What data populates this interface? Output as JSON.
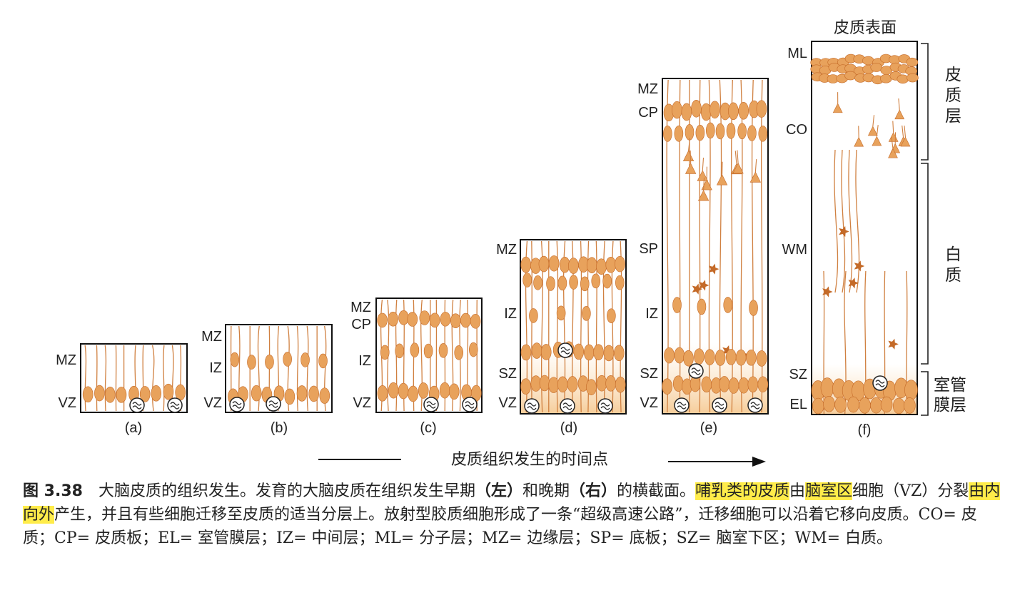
{
  "panels": [
    {
      "id": "a",
      "label": "(a)",
      "layers": [
        "MZ",
        "VZ"
      ]
    },
    {
      "id": "b",
      "label": "(b)",
      "layers": [
        "MZ",
        "IZ",
        "VZ"
      ]
    },
    {
      "id": "c",
      "label": "(c)",
      "layers": [
        "MZ",
        "CP",
        "IZ",
        "VZ"
      ]
    },
    {
      "id": "d",
      "label": "(d)",
      "layers": [
        "MZ",
        "IZ",
        "SZ",
        "VZ"
      ]
    },
    {
      "id": "e",
      "label": "(e)",
      "layers": [
        "MZ",
        "CP",
        "SP",
        "IZ",
        "SZ",
        "VZ"
      ]
    },
    {
      "id": "f",
      "label": "(f)",
      "layers": [
        "ML",
        "CO",
        "WM",
        "SZ",
        "EL"
      ]
    }
  ],
  "surface_label": "皮质表面",
  "brackets": [
    {
      "text": "皮质层"
    },
    {
      "text": "白质"
    },
    {
      "text": "室管膜层"
    }
  ],
  "timeline_label": "皮质组织发生的时间点",
  "colors": {
    "cell": "#e8a25c",
    "cell_dark": "#c46a28",
    "band": "#f5c890",
    "fiber": "#d08040",
    "outline": "#111111",
    "highlight": "#ffec4a"
  },
  "caption": {
    "fig_num": "图 3.38",
    "s1": "大脑皮质的组织发生。发育的大脑皮质在组织发生早期",
    "left": "（左）",
    "s2": "和晚期",
    "right": "（右）",
    "s3": "的横截面。",
    "hl1": "哺乳类的皮质",
    "s4": "由",
    "hl2": "脑室区",
    "s5": "细胞（VZ）分裂",
    "hl3": "由内向外",
    "s6": "产生，并且有些细胞迁移至皮质的适当分层上。放射型胶质细胞形成了一条“超级高速公路”，迁移细胞可以沿着它移向皮质。CO= 皮质；CP= 皮质板；EL= 室管膜层；IZ= 中间层；ML= 分子层；MZ= 边缘层；SP= 底板；SZ= 脑室下区；WM= 白质。"
  }
}
